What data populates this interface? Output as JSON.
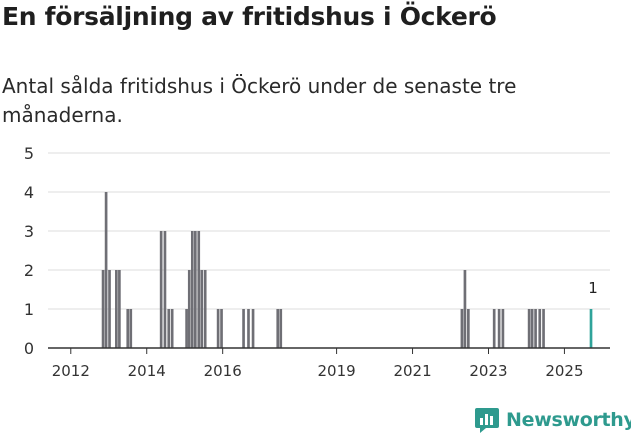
{
  "title": "En försäljning av fritidshus i Öckerö",
  "subtitle": "Antal sålda fritidshus i Öckerö under de senaste tre månaderna.",
  "brand": {
    "name": "Newsworthy",
    "icon": "newsworthy-logo-icon",
    "color": "#2e9a8e"
  },
  "colors": {
    "bar": "#6f6f75",
    "highlight": "#2fa39a",
    "grid": "#dddddd",
    "axis": "#333333"
  },
  "chart_data": {
    "type": "bar",
    "title": "En försäljning av fritidshus i Öckerö",
    "ylabel": "",
    "xlabel": "",
    "ylim": [
      0,
      5
    ],
    "y_ticks": [
      "0",
      "1",
      "2",
      "3",
      "4",
      "5"
    ],
    "x_ticks": [
      {
        "label": "2012",
        "year": 2012
      },
      {
        "label": "2014",
        "year": 2014
      },
      {
        "label": "2016",
        "year": 2016
      },
      {
        "label": "2019",
        "year": 2019
      },
      {
        "label": "2021",
        "year": 2021
      },
      {
        "label": "2023",
        "year": 2023
      },
      {
        "label": "2025",
        "year": 2025
      }
    ],
    "x_range": [
      2011.4,
      2026.2
    ],
    "period_years": 0.0833,
    "bars": [
      {
        "t": 2012.85,
        "v": 2
      },
      {
        "t": 2012.93,
        "v": 4
      },
      {
        "t": 2013.02,
        "v": 2
      },
      {
        "t": 2013.2,
        "v": 2
      },
      {
        "t": 2013.28,
        "v": 2
      },
      {
        "t": 2013.5,
        "v": 1
      },
      {
        "t": 2013.58,
        "v": 1
      },
      {
        "t": 2014.38,
        "v": 3
      },
      {
        "t": 2014.48,
        "v": 3
      },
      {
        "t": 2014.58,
        "v": 1
      },
      {
        "t": 2014.67,
        "v": 1
      },
      {
        "t": 2015.05,
        "v": 1
      },
      {
        "t": 2015.12,
        "v": 2
      },
      {
        "t": 2015.2,
        "v": 3
      },
      {
        "t": 2015.28,
        "v": 3
      },
      {
        "t": 2015.37,
        "v": 3
      },
      {
        "t": 2015.45,
        "v": 2
      },
      {
        "t": 2015.54,
        "v": 2
      },
      {
        "t": 2015.88,
        "v": 1
      },
      {
        "t": 2015.97,
        "v": 1
      },
      {
        "t": 2016.55,
        "v": 1
      },
      {
        "t": 2016.68,
        "v": 1
      },
      {
        "t": 2016.8,
        "v": 1
      },
      {
        "t": 2017.45,
        "v": 1
      },
      {
        "t": 2017.53,
        "v": 1
      },
      {
        "t": 2022.3,
        "v": 1
      },
      {
        "t": 2022.38,
        "v": 2
      },
      {
        "t": 2022.47,
        "v": 1
      },
      {
        "t": 2023.15,
        "v": 1
      },
      {
        "t": 2023.28,
        "v": 1
      },
      {
        "t": 2023.38,
        "v": 1
      },
      {
        "t": 2024.07,
        "v": 1
      },
      {
        "t": 2024.15,
        "v": 1
      },
      {
        "t": 2024.24,
        "v": 1
      },
      {
        "t": 2024.35,
        "v": 1
      },
      {
        "t": 2024.45,
        "v": 1
      },
      {
        "t": 2025.7,
        "v": 1,
        "highlight": true,
        "label": "1"
      }
    ]
  }
}
